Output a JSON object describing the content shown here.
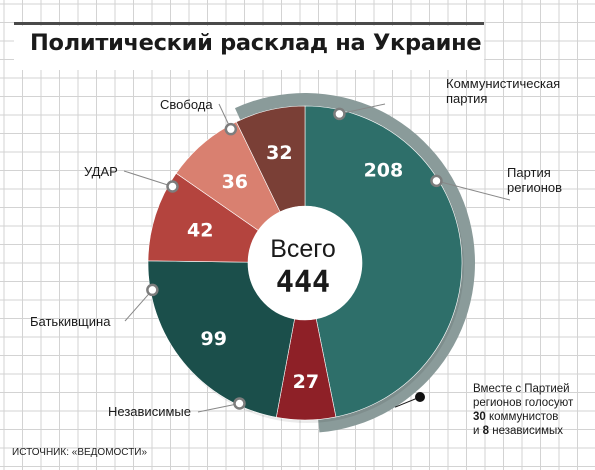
{
  "title": "Политический расклад на Украине",
  "source": "ИСТОЧНИК: «ВЕДОМОСТИ»",
  "center": {
    "label": "Всего",
    "value": "444"
  },
  "note": {
    "line1": "Вместе с Партией",
    "line2": "регионов голосуют",
    "count_communists": "30",
    "communists_word": "коммунистов",
    "conj": "и",
    "count_independents": "8",
    "independents_word": "независимых"
  },
  "colors": {
    "party_of_regions": "#2e6f6a",
    "batkivshchyna": "#1b4f4b",
    "independents": "#8e2027",
    "udar": "#b4443e",
    "svoboda": "#d98070",
    "communists": "#7a3f36",
    "coalition_band": "#8a9b9a",
    "grid": "#d3d3d3"
  },
  "chart_data": {
    "type": "pie",
    "donut": true,
    "total": 444,
    "slices": [
      {
        "id": "party-of-regions",
        "label": "Партия регионов",
        "label_lines": [
          "Партия",
          "регионов"
        ],
        "value": 208
      },
      {
        "id": "independents",
        "label": "Независимые",
        "label_lines": [
          "Независимые"
        ],
        "value": 27
      },
      {
        "id": "batkivshchyna",
        "label": "Батькивщина",
        "label_lines": [
          "Батькивщина"
        ],
        "value": 99
      },
      {
        "id": "udar",
        "label": "УДАР",
        "label_lines": [
          "УДАР"
        ],
        "value": 42
      },
      {
        "id": "svoboda",
        "label": "Свобода",
        "label_lines": [
          "Свобода"
        ],
        "value": 36
      },
      {
        "id": "communists",
        "label": "Коммунистическая партия",
        "label_lines": [
          "Коммунистическая",
          "партия"
        ],
        "value": 32
      }
    ],
    "coalition": {
      "party_of_regions": 208,
      "communists": 30,
      "independents": 8
    }
  }
}
